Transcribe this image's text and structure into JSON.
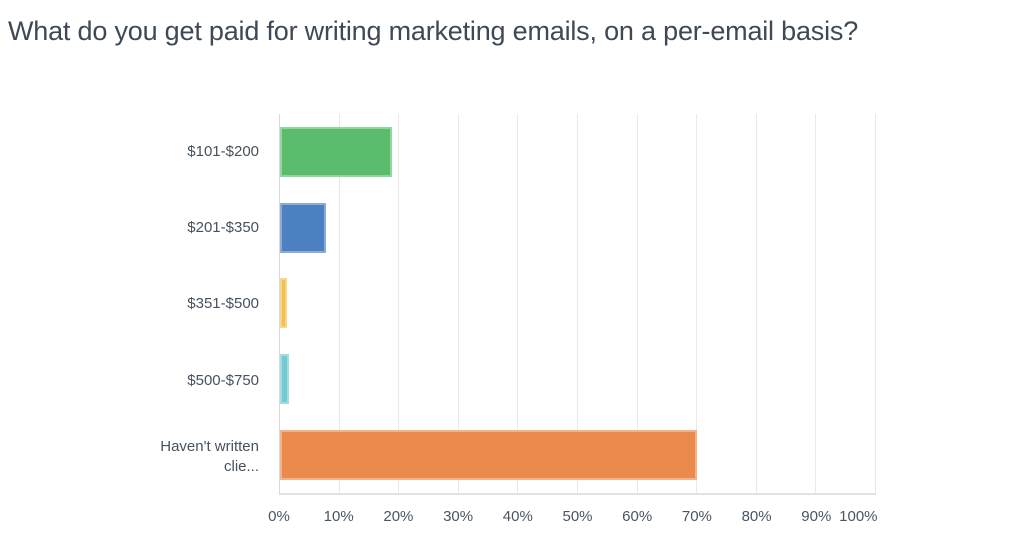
{
  "title": "What do you get paid for writing marketing emails, on a per-email basis?",
  "chart_data": {
    "type": "bar",
    "orientation": "horizontal",
    "title": "What do you get paid for writing marketing emails, on a per-email basis?",
    "categories": [
      "$101-$200",
      "$201-$350",
      "$351-$500",
      "$500-$750",
      "Haven't written clie..."
    ],
    "values": [
      18.8,
      7.7,
      1.2,
      1.5,
      70
    ],
    "unit": "%",
    "bar_colors": [
      "#5cbc6e",
      "#4d80c0",
      "#f2c14a",
      "#72cbd1",
      "#eb8a4d"
    ],
    "xlabel": "",
    "ylabel": "",
    "xlim": [
      0,
      100
    ],
    "x_ticks": [
      {
        "value": 0,
        "label": "0%"
      },
      {
        "value": 10,
        "label": "10%"
      },
      {
        "value": 20,
        "label": "20%"
      },
      {
        "value": 30,
        "label": "30%"
      },
      {
        "value": 40,
        "label": "40%"
      },
      {
        "value": 50,
        "label": "50%"
      },
      {
        "value": 60,
        "label": "60%"
      },
      {
        "value": 70,
        "label": "70%"
      },
      {
        "value": 80,
        "label": "80%"
      },
      {
        "value": 90,
        "label": "90%"
      },
      {
        "value": 100,
        "label": "100%"
      }
    ],
    "grid": "vertical",
    "legend": "none"
  },
  "colors": {
    "title_text": "#3e4956",
    "label_text": "#47525e",
    "tick_text": "#4a5562",
    "gridline": "#e9e9e9",
    "axis_line": "#d9d9d9",
    "background": "#ffffff"
  }
}
